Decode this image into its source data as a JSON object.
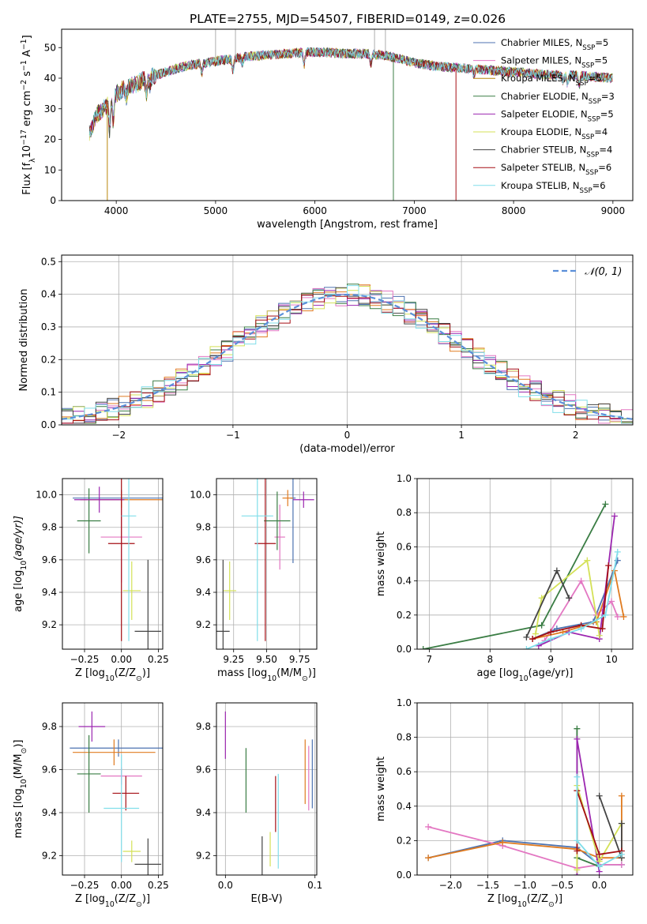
{
  "figure_title": "PLATE=2755, MJD=54507, FIBERID=0149, z=0.026",
  "colors": {
    "Chabrier MILES": "#4c72b0",
    "Salpeter MILES": "#e377c2",
    "Kroupa MILES": "#b8860b",
    "Chabrier ELODIE": "#3a7d44",
    "Salpeter ELODIE": "#9c27b0",
    "Kroupa ELODIE": "#d4e157",
    "Chabrier STELIB": "#444444",
    "Salpeter STELIB": "#a50f15",
    "Kroupa STELIB": "#80deea",
    "orange": "#e07b20",
    "normal": "#5b8fd9"
  },
  "chart_data": [
    {
      "id": "spectrum",
      "type": "line",
      "title": "PLATE=2755, MJD=54507, FIBERID=0149, z=0.026",
      "xlabel": "wavelength [Angstrom, rest frame]",
      "ylabel_parts": [
        "Flux [f",
        "λ",
        "10",
        "−17",
        " erg cm",
        "−2",
        " s",
        "−1",
        " A",
        "−1",
        "]"
      ],
      "xlim": [
        3450,
        9200
      ],
      "ylim": [
        0,
        56
      ],
      "xticks": [
        4000,
        5000,
        6000,
        7000,
        8000,
        9000
      ],
      "yticks": [
        0,
        10,
        20,
        30,
        40,
        50
      ],
      "legend_position": "top-right",
      "legend": [
        {
          "model": "Chabrier MILES",
          "n": "5"
        },
        {
          "model": "Salpeter MILES",
          "n": "5"
        },
        {
          "model": "Kroupa MILES",
          "n": "5"
        },
        {
          "model": "Chabrier ELODIE",
          "n": "3"
        },
        {
          "model": "Salpeter ELODIE",
          "n": "5"
        },
        {
          "model": "Kroupa ELODIE",
          "n": "4"
        },
        {
          "model": "Chabrier STELIB",
          "n": "4"
        },
        {
          "model": "Salpeter STELIB",
          "n": "6"
        },
        {
          "model": "Kroupa STELIB",
          "n": "6"
        }
      ],
      "continuum_x": [
        3730,
        3800,
        3900,
        4000,
        4100,
        4200,
        4300,
        4500,
        4700,
        4900,
        5100,
        5300,
        5500,
        5700,
        5900,
        6100,
        6300,
        6500,
        6700,
        6900,
        7000,
        7200,
        7400,
        7600,
        7800,
        8000,
        8200,
        8400,
        8600,
        8800,
        9000
      ],
      "continuum_y": [
        22,
        28,
        31,
        35,
        37,
        38,
        40,
        42,
        44,
        45,
        46,
        47,
        47.5,
        48,
        48.5,
        48.5,
        48,
        48,
        47.5,
        46,
        45,
        44,
        43.5,
        43,
        42.5,
        42,
        41.5,
        41,
        41,
        40.5,
        40
      ],
      "drop_lines": [
        {
          "model": "Kroupa MILES",
          "x": 3910
        },
        {
          "model": "Chabrier ELODIE",
          "x": 6790
        },
        {
          "model": "Salpeter STELIB",
          "x": 7420
        }
      ],
      "spikes": [
        5000,
        5200,
        6600,
        6710
      ]
    },
    {
      "id": "residuals",
      "type": "step",
      "xlabel": "(data-model)/error",
      "ylabel": "Normed distribution",
      "xlim": [
        -2.5,
        2.5
      ],
      "ylim": [
        0,
        0.52
      ],
      "xticks": [
        -2,
        -1,
        0,
        1,
        2
      ],
      "xtick_labels": [
        "−2",
        "−1",
        "0",
        "1",
        "2"
      ],
      "yticks": [
        0,
        0.1,
        0.2,
        0.3,
        0.4,
        0.5
      ],
      "ytick_labels": [
        "0.0",
        "0.1",
        "0.2",
        "0.3",
        "0.4",
        "0.5"
      ],
      "grid": true,
      "bin_width": 0.1,
      "legend": {
        "label": "𝒩(0, 1)",
        "position": "top-right"
      },
      "series_models": [
        "Chabrier MILES",
        "Salpeter MILES",
        "orange",
        "Chabrier ELODIE",
        "Salpeter ELODIE",
        "Kroupa ELODIE",
        "Chabrier STELIB",
        "Salpeter STELIB",
        "Kroupa STELIB"
      ]
    },
    {
      "id": "age-vs-Z",
      "type": "errorbar",
      "xlabel_parts": [
        "Z [log",
        "10",
        "(Z/Z",
        "⊙",
        ")]"
      ],
      "ylabel_parts": [
        "age  [log",
        "10",
        "(age/yr)]"
      ],
      "xlim": [
        -0.4,
        0.28
      ],
      "ylim": [
        9.05,
        10.1
      ],
      "xticks": [
        -0.25,
        0.0,
        0.25
      ],
      "xtick_labels": [
        "−0.25",
        "0.00",
        "0.25"
      ],
      "yticks": [
        9.2,
        9.4,
        9.6,
        9.8,
        10.0
      ],
      "ytick_labels": [
        "9.2",
        "9.4",
        "9.6",
        "9.8",
        "10.0"
      ],
      "points": [
        {
          "model": "Chabrier MILES",
          "x": 0.0,
          "xerr": 0.33,
          "y": 9.98,
          "yerr": 0.05
        },
        {
          "model": "Salpeter MILES",
          "x": 0.0,
          "xerr": 0.14,
          "y": 9.74,
          "yerr": 0.28
        },
        {
          "model": "orange",
          "x": 0.0,
          "xerr": 0.28,
          "y": 9.97,
          "yerr": 0.05
        },
        {
          "model": "Chabrier ELODIE",
          "x": -0.22,
          "xerr": 0.08,
          "y": 9.84,
          "yerr": 0.2
        },
        {
          "model": "Salpeter ELODIE",
          "x": -0.15,
          "xerr": 0.17,
          "y": 9.97,
          "yerr": 0.08
        },
        {
          "model": "Kroupa ELODIE",
          "x": 0.07,
          "xerr": 0.06,
          "y": 9.41,
          "yerr": 0.18
        },
        {
          "model": "Chabrier STELIB",
          "x": 0.18,
          "xerr": 0.09,
          "y": 9.16,
          "yerr": 0.44
        },
        {
          "model": "Salpeter STELIB",
          "x": 0.0,
          "xerr": 0.09,
          "y": 9.7,
          "yerr": 0.6
        },
        {
          "model": "Kroupa STELIB",
          "x": 0.05,
          "xerr": 0.05,
          "y": 9.87,
          "yerr": 0.77
        }
      ]
    },
    {
      "id": "age-vs-mass",
      "type": "errorbar",
      "xlabel_parts": [
        "mass [log",
        "10",
        "(M/M",
        "⊙",
        ")]"
      ],
      "xlim": [
        9.12,
        9.88
      ],
      "ylim": [
        9.05,
        10.1
      ],
      "xticks": [
        9.25,
        9.5,
        9.75
      ],
      "xtick_labels": [
        "9.25",
        "9.50",
        "9.75"
      ],
      "yticks": [
        9.2,
        9.4,
        9.6,
        9.8,
        10.0
      ],
      "ytick_labels": [
        "9.2",
        "9.4",
        "9.6",
        "9.8",
        "10.0"
      ],
      "points": [
        {
          "model": "Chabrier MILES",
          "x": 9.7,
          "xerr": 0.02,
          "y": 9.98,
          "yerr": 0.4
        },
        {
          "model": "Salpeter MILES",
          "x": 9.6,
          "xerr": 0.04,
          "y": 9.74,
          "yerr": 0.2
        },
        {
          "model": "orange",
          "x": 9.66,
          "xerr": 0.04,
          "y": 9.98,
          "yerr": 0.05
        },
        {
          "model": "Chabrier ELODIE",
          "x": 9.58,
          "xerr": 0.1,
          "y": 9.84,
          "yerr": 0.18
        },
        {
          "model": "Salpeter ELODIE",
          "x": 9.78,
          "xerr": 0.08,
          "y": 9.97,
          "yerr": 0.05
        },
        {
          "model": "Kroupa ELODIE",
          "x": 9.22,
          "xerr": 0.05,
          "y": 9.41,
          "yerr": 0.18
        },
        {
          "model": "Chabrier STELIB",
          "x": 9.17,
          "xerr": 0.05,
          "y": 9.16,
          "yerr": 0.44
        },
        {
          "model": "Salpeter STELIB",
          "x": 9.49,
          "xerr": 0.08,
          "y": 9.7,
          "yerr": 0.6
        },
        {
          "model": "Kroupa STELIB",
          "x": 9.43,
          "xerr": 0.12,
          "y": 9.87,
          "yerr": 0.77
        }
      ]
    },
    {
      "id": "weights-vs-age",
      "type": "line",
      "xlabel_parts": [
        "age  [log",
        "10",
        "(age/yr)]"
      ],
      "ylabel": "mass weight",
      "xlim": [
        6.8,
        10.35
      ],
      "ylim": [
        0,
        1.0
      ],
      "xticks": [
        7,
        8,
        9,
        10
      ],
      "yticks": [
        0,
        0.2,
        0.4,
        0.6,
        0.8,
        1.0
      ],
      "ytick_labels": [
        "0.0",
        "0.2",
        "0.4",
        "0.6",
        "0.8",
        "1.0"
      ],
      "series": [
        {
          "model": "Chabrier MILES",
          "x": [
            8.7,
            9.1,
            9.7,
            10.1
          ],
          "y": [
            0.06,
            0.12,
            0.16,
            0.52
          ]
        },
        {
          "model": "Salpeter MILES",
          "x": [
            8.9,
            9.5,
            9.75,
            10.0,
            10.1
          ],
          "y": [
            0.05,
            0.4,
            0.2,
            0.28,
            0.19
          ]
        },
        {
          "model": "orange",
          "x": [
            8.7,
            9.2,
            9.75,
            10.05,
            10.2
          ],
          "y": [
            0.06,
            0.1,
            0.16,
            0.46,
            0.19
          ]
        },
        {
          "model": "Chabrier ELODIE",
          "x": [
            6.9,
            8.85,
            9.9
          ],
          "y": [
            0.0,
            0.14,
            0.85
          ]
        },
        {
          "model": "Salpeter ELODIE",
          "x": [
            8.8,
            9.3,
            9.8,
            10.05
          ],
          "y": [
            0.02,
            0.1,
            0.06,
            0.78
          ]
        },
        {
          "model": "Kroupa ELODIE",
          "x": [
            8.75,
            8.85,
            9.6,
            9.8
          ],
          "y": [
            0.09,
            0.3,
            0.52,
            0.08
          ]
        },
        {
          "model": "Chabrier STELIB",
          "x": [
            8.6,
            9.1,
            9.3
          ],
          "y": [
            0.07,
            0.46,
            0.3
          ]
        },
        {
          "model": "Salpeter STELIB",
          "x": [
            8.7,
            9.0,
            9.5,
            9.85,
            9.95
          ],
          "y": [
            0.06,
            0.1,
            0.14,
            0.12,
            0.49
          ]
        },
        {
          "model": "Kroupa STELIB",
          "x": [
            8.6,
            9.0,
            9.5,
            9.9,
            10.1
          ],
          "y": [
            0.0,
            0.06,
            0.12,
            0.2,
            0.57
          ]
        }
      ]
    },
    {
      "id": "mass-vs-Z",
      "type": "errorbar",
      "xlabel_parts": [
        "Z [log",
        "10",
        "(Z/Z",
        "⊙",
        ")]"
      ],
      "ylabel_parts": [
        "mass [log",
        "10",
        "(M/M",
        "⊙",
        ")]"
      ],
      "xlim": [
        -0.4,
        0.28
      ],
      "ylim": [
        9.11,
        9.91
      ],
      "xticks": [
        -0.25,
        0.0,
        0.25
      ],
      "xtick_labels": [
        "−0.25",
        "0.00",
        "0.25"
      ],
      "yticks": [
        9.2,
        9.4,
        9.6,
        9.8
      ],
      "ytick_labels": [
        "9.2",
        "9.4",
        "9.6",
        "9.8"
      ],
      "points": [
        {
          "model": "Chabrier MILES",
          "x": -0.02,
          "xerr": 0.33,
          "y": 9.7,
          "yerr": 0.04
        },
        {
          "model": "Salpeter MILES",
          "x": 0.0,
          "xerr": 0.14,
          "y": 9.57,
          "yerr": 0.04
        },
        {
          "model": "orange",
          "x": -0.05,
          "xerr": 0.28,
          "y": 9.68,
          "yerr": 0.06
        },
        {
          "model": "Chabrier ELODIE",
          "x": -0.22,
          "xerr": 0.08,
          "y": 9.58,
          "yerr": 0.18
        },
        {
          "model": "Salpeter ELODIE",
          "x": -0.2,
          "xerr": 0.09,
          "y": 9.8,
          "yerr": 0.07
        },
        {
          "model": "Kroupa ELODIE",
          "x": 0.07,
          "xerr": 0.06,
          "y": 9.22,
          "yerr": 0.05
        },
        {
          "model": "Chabrier STELIB",
          "x": 0.18,
          "xerr": 0.09,
          "y": 9.16,
          "yerr": 0.12
        },
        {
          "model": "Salpeter STELIB",
          "x": 0.03,
          "xerr": 0.09,
          "y": 9.49,
          "yerr": 0.08
        },
        {
          "model": "Kroupa STELIB",
          "x": 0.0,
          "xerr": 0.12,
          "y": 9.42,
          "yerr": 0.25
        }
      ]
    },
    {
      "id": "mass-vs-EBV",
      "type": "errorbar",
      "xlabel": "E(B-V)",
      "xlim": [
        -0.01,
        0.102
      ],
      "ylim": [
        9.11,
        9.91
      ],
      "xticks": [
        0.0,
        0.1
      ],
      "xtick_labels": [
        "0.0",
        "0.1"
      ],
      "yticks": [
        9.2,
        9.4,
        9.6,
        9.8
      ],
      "ytick_labels": [
        "9.2",
        "9.4",
        "9.6",
        "9.8"
      ],
      "points": [
        {
          "model": "Salpeter ELODIE",
          "x": 0.0,
          "y": 9.76,
          "yerr": 0.11
        },
        {
          "model": "Chabrier ELODIE",
          "x": 0.023,
          "y": 9.55,
          "yerr": 0.15
        },
        {
          "model": "Chabrier STELIB",
          "x": 0.041,
          "y": 9.19,
          "yerr": 0.1
        },
        {
          "model": "Kroupa ELODIE",
          "x": 0.05,
          "y": 9.23,
          "yerr": 0.08
        },
        {
          "model": "Salpeter STELIB",
          "x": 0.056,
          "y": 9.44,
          "yerr": 0.13
        },
        {
          "model": "Kroupa STELIB",
          "x": 0.059,
          "y": 9.36,
          "yerr": 0.22
        },
        {
          "model": "orange",
          "x": 0.089,
          "y": 9.59,
          "yerr": 0.15
        },
        {
          "model": "Salpeter MILES",
          "x": 0.093,
          "y": 9.56,
          "yerr": 0.15
        },
        {
          "model": "Chabrier MILES",
          "x": 0.097,
          "y": 9.58,
          "yerr": 0.16
        }
      ]
    },
    {
      "id": "weights-vs-Z",
      "type": "line",
      "xlabel_parts": [
        "Z [log",
        "10",
        "(Z/Z",
        "⊙",
        ")]"
      ],
      "ylabel": "mass weight",
      "xlim": [
        -2.45,
        0.45
      ],
      "ylim": [
        0,
        1.0
      ],
      "xticks": [
        -2.0,
        -1.5,
        -1.0,
        -0.5,
        0.0
      ],
      "xtick_labels": [
        "−2.0",
        "−1.5",
        "−1.0",
        "−0.5",
        "0.0"
      ],
      "yticks": [
        0,
        0.2,
        0.4,
        0.6,
        0.8,
        1.0
      ],
      "ytick_labels": [
        "0.0",
        "0.2",
        "0.4",
        "0.6",
        "0.8",
        "1.0"
      ],
      "series": [
        {
          "model": "Chabrier MILES",
          "x": [
            -2.3,
            -1.3,
            -0.3,
            0.0,
            0.3
          ],
          "y": [
            0.1,
            0.2,
            0.16,
            0.06,
            0.06
          ]
        },
        {
          "model": "Salpeter MILES",
          "x": [
            -2.3,
            -1.3,
            -0.3,
            0.0,
            0.3
          ],
          "y": [
            0.28,
            0.17,
            0.04,
            0.06,
            0.06
          ]
        },
        {
          "model": "orange",
          "x": [
            -2.3,
            -1.3,
            -0.3,
            0.0,
            0.3,
            0.3
          ],
          "y": [
            0.1,
            0.19,
            0.15,
            0.1,
            0.1,
            0.46
          ]
        },
        {
          "model": "Chabrier ELODIE",
          "x": [
            -0.3,
            -0.3,
            0.0
          ],
          "y": [
            0.85,
            0.1,
            0.05
          ]
        },
        {
          "model": "Salpeter ELODIE",
          "x": [
            -0.3,
            -0.3,
            0.0,
            0.0
          ],
          "y": [
            0.0,
            0.79,
            0.02,
            0.09
          ]
        },
        {
          "model": "Kroupa ELODIE",
          "x": [
            -0.3,
            -0.3,
            0.0,
            0.3
          ],
          "y": [
            0.03,
            0.52,
            0.08,
            0.3
          ]
        },
        {
          "model": "Chabrier STELIB",
          "x": [
            0.0,
            0.3,
            0.3
          ],
          "y": [
            0.46,
            0.1,
            0.3
          ]
        },
        {
          "model": "Salpeter STELIB",
          "x": [
            -0.3,
            -0.3,
            0.0,
            0.3
          ],
          "y": [
            0.14,
            0.49,
            0.12,
            0.14
          ]
        },
        {
          "model": "Kroupa STELIB",
          "x": [
            -0.3,
            -0.3,
            0.0,
            0.3
          ],
          "y": [
            0.57,
            0.2,
            0.05,
            0.12
          ]
        }
      ]
    }
  ]
}
